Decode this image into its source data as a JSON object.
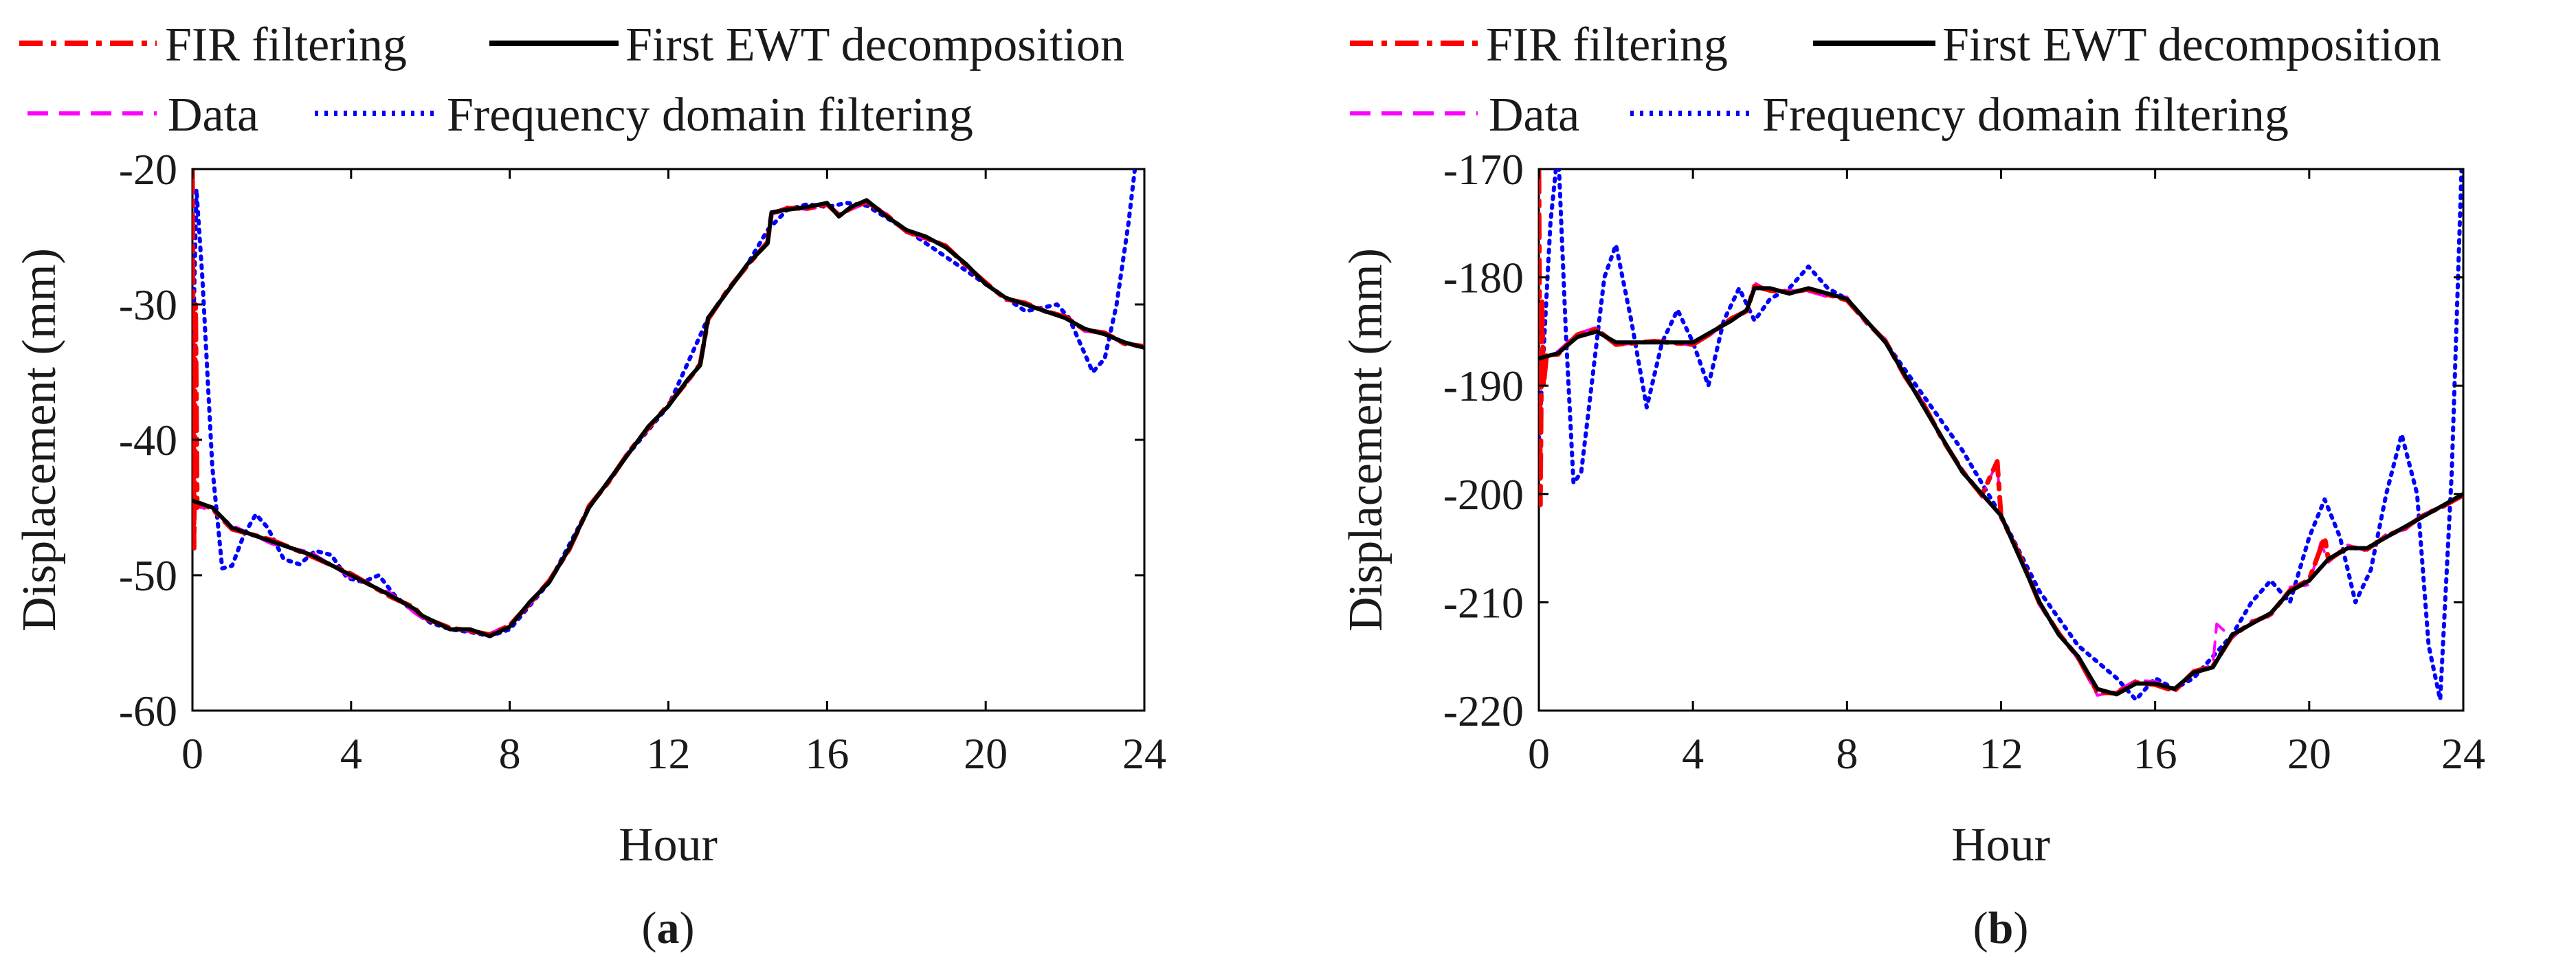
{
  "figure": {
    "colors": {
      "fir": "#ff0000",
      "ewt": "#000000",
      "data": "#ff00ff",
      "freq": "#0000ff",
      "axis": "#000000",
      "text": "#1a1a1a"
    },
    "legend_row1": [
      "FIR filtering",
      "First EWT decomposition"
    ],
    "legend_row2": [
      "Data",
      "Frequency domain filtering"
    ]
  },
  "chart_data": [
    {
      "type": "line",
      "caption_letter": "a",
      "xlabel": "Hour",
      "ylabel": "Displacement (mm)",
      "xlim": [
        0,
        24
      ],
      "ylim": [
        -60,
        -20
      ],
      "xticks": [
        0,
        4,
        8,
        12,
        16,
        20,
        24
      ],
      "yticks": [
        -20,
        -30,
        -40,
        -50,
        -60
      ],
      "ytick_labels": [
        "-20",
        "-30",
        "-40",
        "-50",
        "-60"
      ],
      "legend": [
        "FIR filtering",
        "First EWT decomposition",
        "Data",
        "Frequency domain filtering"
      ],
      "series": [
        {
          "name": "First EWT decomposition",
          "x": [
            0,
            0.5,
            1,
            2,
            3,
            4,
            5,
            5.6,
            5.8,
            6.5,
            7,
            7.5,
            8,
            8.5,
            9,
            9.5,
            10,
            10.5,
            11,
            11.5,
            12,
            12.5,
            12.8,
            13,
            13.5,
            14,
            14.5,
            14.6,
            15,
            15.5,
            16,
            16.3,
            16.6,
            17,
            17.5,
            18,
            18.5,
            19,
            19.5,
            20,
            20.5,
            21,
            21.5,
            22,
            22.5,
            23,
            23.5,
            24
          ],
          "y": [
            -44.5,
            -45,
            -46.5,
            -47.5,
            -48.5,
            -50,
            -51.5,
            -52.5,
            -53,
            -54,
            -54,
            -54.5,
            -53.8,
            -52,
            -50.5,
            -48,
            -45,
            -43,
            -41,
            -39,
            -37.5,
            -35.5,
            -34.5,
            -31,
            -29,
            -27,
            -25.5,
            -23.2,
            -23,
            -22.8,
            -22.5,
            -23.5,
            -22.8,
            -22.3,
            -23.5,
            -24.5,
            -25,
            -25.8,
            -27,
            -28.5,
            -29.5,
            -30,
            -30.5,
            -31,
            -31.8,
            -32.2,
            -32.8,
            -33.2
          ]
        },
        {
          "name": "Data",
          "x": [
            0,
            0.1,
            0.2,
            0.5,
            1,
            2,
            3,
            4,
            5,
            5.6,
            5.8,
            6.5,
            7,
            7.5,
            8,
            8.5,
            9,
            9.5,
            10,
            10.5,
            11,
            11.5,
            12,
            12.5,
            12.8,
            13,
            13.5,
            14,
            14.5,
            14.6,
            15,
            15.5,
            16,
            16.3,
            16.6,
            17,
            17.5,
            18,
            18.5,
            19,
            19.5,
            20,
            20.5,
            21,
            21.5,
            22,
            22.5,
            23,
            23.5,
            24
          ],
          "y": [
            -44.8,
            -44.5,
            -45,
            -45.2,
            -46.3,
            -47.7,
            -48.3,
            -50.2,
            -51.3,
            -52.8,
            -53.2,
            -53.8,
            -54.2,
            -54.3,
            -53.6,
            -52.2,
            -50.3,
            -48.2,
            -44.8,
            -43.2,
            -40.8,
            -39.2,
            -37.3,
            -35.7,
            -34.3,
            -31.2,
            -28.8,
            -27.2,
            -25.3,
            -23.4,
            -22.8,
            -23,
            -22.7,
            -23.3,
            -23,
            -22.5,
            -23.3,
            -24.7,
            -25.2,
            -25.6,
            -27.2,
            -28.3,
            -29.7,
            -29.8,
            -30.6,
            -30.8,
            -32,
            -32.1,
            -33,
            -33
          ]
        },
        {
          "name": "FIR filtering",
          "x": [
            0,
            0.04,
            0.08,
            0.12,
            0.2,
            0.5,
            1,
            2,
            3,
            4,
            5,
            5.6,
            5.8,
            6.5,
            7,
            7.5,
            8,
            8.5,
            9,
            9.5,
            10,
            10.5,
            11,
            11.5,
            12,
            12.5,
            12.8,
            13,
            13.5,
            14,
            14.5,
            14.6,
            15,
            15.5,
            16,
            16.3,
            16.6,
            17,
            17.5,
            18,
            18.5,
            19,
            19.5,
            20,
            20.5,
            21,
            21.5,
            22,
            22.5,
            23,
            23.5,
            24
          ],
          "y": [
            -20,
            -48,
            -30,
            -45,
            -44.7,
            -45.1,
            -46.6,
            -47.4,
            -48.6,
            -49.9,
            -51.6,
            -52.4,
            -53.1,
            -53.9,
            -54.1,
            -54.4,
            -53.7,
            -52.1,
            -50.4,
            -48.1,
            -44.9,
            -43.1,
            -40.9,
            -39.1,
            -37.4,
            -35.6,
            -34.4,
            -31.1,
            -28.9,
            -27.1,
            -25.4,
            -23.3,
            -22.9,
            -22.9,
            -22.6,
            -23.4,
            -22.9,
            -22.4,
            -23.4,
            -24.6,
            -25.1,
            -25.7,
            -27.1,
            -28.4,
            -29.6,
            -29.9,
            -30.5,
            -30.9,
            -31.9,
            -32.1,
            -32.9,
            -33.1
          ]
        },
        {
          "name": "Frequency domain filtering",
          "x": [
            0,
            0.1,
            0.25,
            0.5,
            0.75,
            1,
            1.3,
            1.6,
            1.9,
            2.3,
            2.7,
            3.1,
            3.5,
            3.9,
            4.3,
            4.7,
            5.1,
            5.5,
            6,
            6.5,
            7,
            7.5,
            8,
            9,
            10,
            11,
            12,
            13,
            14,
            14.5,
            15,
            15.5,
            16,
            16.5,
            17,
            18,
            19,
            20,
            20.5,
            21,
            21.5,
            21.8,
            22.1,
            22.4,
            22.7,
            23,
            23.3,
            23.6,
            23.8,
            24
          ],
          "y": [
            -35,
            -21.5,
            -28,
            -42,
            -49.5,
            -49.3,
            -47,
            -45.5,
            -46.5,
            -48.8,
            -49.2,
            -48.2,
            -48.5,
            -50.2,
            -50.5,
            -50,
            -51.5,
            -52.5,
            -53.5,
            -54,
            -54.2,
            -54.5,
            -54,
            -50.5,
            -45,
            -41,
            -37.5,
            -31,
            -27,
            -24.5,
            -23,
            -22.6,
            -22.8,
            -22.5,
            -22.7,
            -24.5,
            -26.5,
            -28.5,
            -29.5,
            -30.5,
            -30.2,
            -30,
            -31,
            -33,
            -35,
            -34,
            -30,
            -24,
            -19,
            -18
          ]
        }
      ]
    },
    {
      "type": "line",
      "caption_letter": "b",
      "xlabel": "Hour",
      "ylabel": "Displacement (mm)",
      "xlim": [
        0,
        24
      ],
      "ylim": [
        -220,
        -170
      ],
      "xticks": [
        0,
        4,
        8,
        12,
        16,
        20,
        24
      ],
      "yticks": [
        -170,
        -180,
        -190,
        -200,
        -210,
        -220
      ],
      "ytick_labels": [
        "-170",
        "-180",
        "-190",
        "-200",
        "-210",
        "-220"
      ],
      "legend": [
        "FIR filtering",
        "First EWT decomposition",
        "Data",
        "Frequency domain filtering"
      ],
      "series": [
        {
          "name": "First EWT decomposition",
          "x": [
            0,
            0.5,
            1,
            1.5,
            2,
            3,
            4,
            4.5,
            5,
            5.4,
            5.6,
            6,
            6.5,
            7,
            7.5,
            8,
            8.5,
            9,
            9.5,
            10,
            10.5,
            11,
            11.5,
            12,
            12.5,
            13,
            13.5,
            14,
            14.5,
            15,
            15.5,
            16,
            16.5,
            17,
            17.5,
            18,
            18.5,
            19,
            19.5,
            20,
            20.5,
            21,
            21.5,
            22,
            22.5,
            23,
            23.5,
            24
          ],
          "y": [
            -187.5,
            -187,
            -185.5,
            -185,
            -186,
            -186,
            -186,
            -185,
            -184,
            -183,
            -181,
            -181,
            -181.5,
            -181,
            -181.5,
            -182,
            -184,
            -186,
            -189,
            -192,
            -195,
            -198,
            -200,
            -202,
            -206,
            -210,
            -213,
            -215,
            -218,
            -218.5,
            -217.5,
            -217.5,
            -218,
            -216.5,
            -216,
            -213,
            -212,
            -211,
            -209,
            -208,
            -206,
            -205,
            -205,
            -204,
            -203,
            -202,
            -201,
            -200
          ]
        },
        {
          "name": "Data",
          "x": [
            0,
            0.1,
            0.2,
            0.5,
            1,
            1.5,
            2,
            3,
            4,
            4.5,
            5,
            5.4,
            5.6,
            6,
            6.5,
            7,
            7.5,
            8,
            8.5,
            9,
            9.5,
            10,
            10.5,
            11,
            11.5,
            11.9,
            12,
            12.5,
            13,
            13.5,
            14,
            14.5,
            15,
            15.5,
            16,
            16.5,
            17,
            17.5,
            17.6,
            18,
            18.5,
            19,
            19.5,
            20,
            20.3,
            20.5,
            21,
            21.5,
            22,
            22.5,
            23,
            23.5,
            24
          ],
          "y": [
            -187.8,
            -187,
            -187.4,
            -186.8,
            -185.2,
            -184.6,
            -186.3,
            -185.8,
            -186.3,
            -185.2,
            -183.7,
            -183.2,
            -180.5,
            -181.3,
            -181.2,
            -181.3,
            -181.8,
            -181.8,
            -184.3,
            -185.7,
            -189.3,
            -191.6,
            -195.3,
            -197.7,
            -200.3,
            -197,
            -202.3,
            -205.6,
            -210.3,
            -212.7,
            -215.3,
            -218.6,
            -218.2,
            -217.2,
            -217.3,
            -218.1,
            -216.6,
            -215.7,
            -212,
            -213.3,
            -211.7,
            -211.3,
            -208.6,
            -208.4,
            -204.5,
            -206.3,
            -204.7,
            -205.3,
            -203.7,
            -203.3,
            -201.8,
            -201.2,
            -199.8
          ]
        },
        {
          "name": "FIR filtering",
          "x": [
            0,
            0.04,
            0.08,
            0.12,
            0.2,
            0.5,
            1,
            1.5,
            2,
            3,
            4,
            4.5,
            5,
            5.4,
            5.6,
            6,
            6.5,
            7,
            7.5,
            8,
            8.5,
            9,
            9.5,
            10,
            10.5,
            11,
            11.5,
            11.9,
            12,
            12.5,
            13,
            13.5,
            14,
            14.5,
            15,
            15.5,
            16,
            16.5,
            17,
            17.5,
            18,
            18.5,
            19,
            19.5,
            20,
            20.4,
            20.5,
            21,
            21.5,
            22,
            22.5,
            23,
            23.5,
            24
          ],
          "y": [
            -170,
            -201,
            -182,
            -190,
            -187.2,
            -187.1,
            -185.3,
            -184.8,
            -186.2,
            -185.9,
            -186.2,
            -185.1,
            -183.8,
            -183.1,
            -180.8,
            -181.2,
            -181.4,
            -181.1,
            -181.6,
            -182.1,
            -184.1,
            -185.9,
            -189.1,
            -191.8,
            -195.1,
            -197.9,
            -200.1,
            -197,
            -202.1,
            -205.8,
            -210.1,
            -212.9,
            -215.1,
            -218.3,
            -218.4,
            -217.4,
            -217.6,
            -218.2,
            -216.4,
            -215.9,
            -213.1,
            -211.9,
            -211.1,
            -208.9,
            -207.9,
            -204,
            -206.1,
            -204.9,
            -205.1,
            -203.9,
            -203.1,
            -201.9,
            -201.1,
            -200.1
          ]
        },
        {
          "name": "Frequency domain filtering",
          "x": [
            0,
            0.15,
            0.3,
            0.5,
            0.7,
            0.9,
            1.1,
            1.4,
            1.7,
            2,
            2.4,
            2.8,
            3.2,
            3.6,
            4,
            4.4,
            4.8,
            5.2,
            5.6,
            6,
            6.5,
            7,
            7.5,
            8,
            9,
            10,
            11,
            12,
            13,
            14,
            15,
            15.5,
            16,
            16.5,
            17,
            17.5,
            18,
            18.5,
            19,
            19.5,
            20,
            20.4,
            20.8,
            21.2,
            21.6,
            22,
            22.4,
            22.8,
            23.1,
            23.4,
            23.7,
            24
          ],
          "y": [
            -195,
            -185,
            -175,
            -168,
            -185,
            -199,
            -198,
            -189,
            -180,
            -177,
            -184,
            -192,
            -186,
            -183,
            -186,
            -190,
            -184,
            -181,
            -184,
            -182,
            -181,
            -179,
            -181,
            -182,
            -186,
            -191,
            -196,
            -202,
            -209,
            -214,
            -217,
            -219,
            -217,
            -218,
            -217,
            -215,
            -213,
            -210,
            -208,
            -210,
            -204,
            -200.5,
            -204,
            -210,
            -207,
            -200,
            -194.5,
            -200,
            -214,
            -219,
            -198,
            -165
          ]
        }
      ]
    }
  ]
}
